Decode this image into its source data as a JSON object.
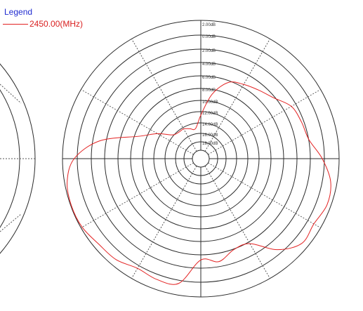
{
  "legend": {
    "title": "Legend",
    "entry_label": "2450.00(MHz)",
    "entry_color": "#e32222"
  },
  "colors": {
    "grid_solid": "#2b2b2b",
    "grid_dotted": "#555555",
    "tick_label": "#333333",
    "background": "#ffffff"
  },
  "chart_data": {
    "type": "polar",
    "title": "",
    "radial_unit": "dB",
    "radial_ticks": [
      "2.00dB",
      "0.00dB",
      "2.00dB",
      "4.00dB",
      "6.00dB",
      "8.00dB",
      "10.00dB",
      "12.00dB",
      "14.00dB",
      "16.00dB",
      "18.00dB"
    ],
    "radial_tick_note": "outermost ring 2.00dB, decreasing toward centre to 18.00dB",
    "angular_step_deg": 30,
    "grid": true,
    "legend_position": "top-left",
    "series": [
      {
        "name": "2450.00(MHz)",
        "angle_deg": [
          0,
          10,
          20,
          30,
          40,
          50,
          60,
          70,
          80,
          90,
          100,
          110,
          120,
          130,
          140,
          150,
          160,
          170,
          180,
          190,
          200,
          210,
          220,
          230,
          240,
          250,
          260,
          270,
          280,
          290,
          300,
          310,
          320,
          330,
          340,
          350
        ],
        "value_db": [
          -14.6,
          -11.2,
          -8.8,
          -8.1,
          -7.5,
          -6.7,
          -5.2,
          -4.8,
          -4.4,
          -2.6,
          -1.0,
          -0.6,
          -1.2,
          -1.0,
          -3.0,
          -6.2,
          -6.4,
          -5.2,
          -5.7,
          -1.8,
          -1.5,
          -1.8,
          -1.0,
          -0.8,
          -0.2,
          -0.1,
          -0.4,
          -1.8,
          -5.5,
          -11.2,
          -13.6,
          -15.6,
          -16.0,
          -16.0,
          -16.4,
          -16.6
        ]
      }
    ]
  }
}
